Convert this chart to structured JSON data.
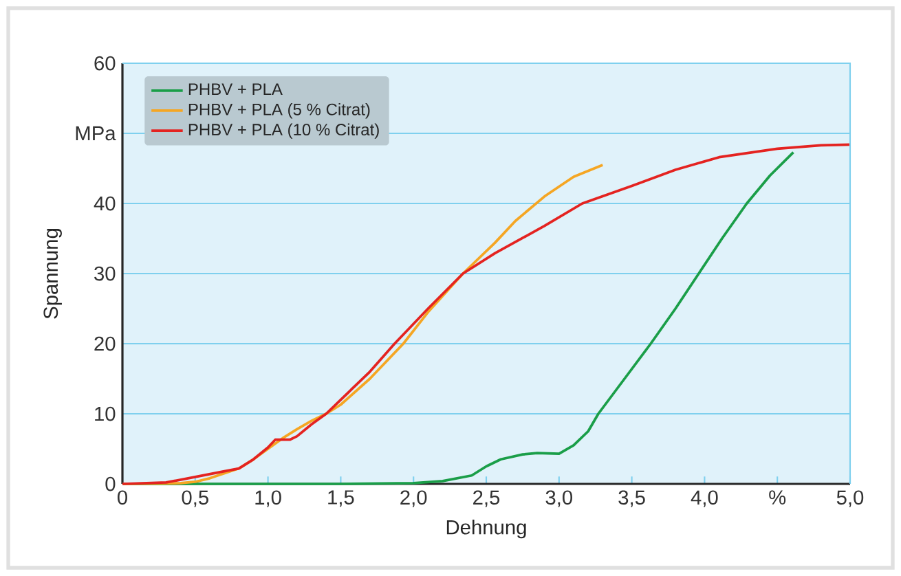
{
  "chart_data": {
    "type": "line",
    "xlabel": "Dehnung",
    "ylabel": "Spannung",
    "xlim": [
      0,
      5
    ],
    "ylim": [
      0,
      60
    ],
    "xticks": [
      0,
      {
        "value": 0.5,
        "label": "0,5"
      },
      {
        "value": 1.0,
        "label": "1,0"
      },
      {
        "value": 1.5,
        "label": "1,5"
      },
      {
        "value": 2.0,
        "label": "2,0"
      },
      {
        "value": 2.5,
        "label": "2,5"
      },
      {
        "value": 3.0,
        "label": "3,0"
      },
      {
        "value": 3.5,
        "label": "3,5"
      },
      {
        "value": 4.0,
        "label": "4,0"
      },
      {
        "value": 4.5,
        "label": "%"
      },
      {
        "value": 5.0,
        "label": "5,0"
      }
    ],
    "yticks": [
      0,
      10,
      20,
      30,
      40,
      {
        "value": 50,
        "label": "MPa"
      },
      60
    ],
    "grid": "y",
    "legend": "top left",
    "marker": "none",
    "line_style": "solid",
    "series": [
      {
        "name": "PHBV + PLA",
        "color": "#1a9e48",
        "x": [
          0,
          1.5,
          2.0,
          2.2,
          2.4,
          2.5,
          2.6,
          2.75,
          2.85,
          3.0,
          3.1,
          3.2,
          3.27,
          3.45,
          3.63,
          3.8,
          3.96,
          4.12,
          4.29,
          4.45,
          4.61
        ],
        "values": [
          0,
          0,
          0.1,
          0.4,
          1.2,
          2.5,
          3.5,
          4.2,
          4.4,
          4.3,
          5.5,
          7.5,
          10,
          15,
          20,
          25,
          30,
          35,
          40,
          44,
          47.3
        ]
      },
      {
        "name": "PHBV + PLA (5 % Citrat)",
        "color": "#f5a623",
        "x": [
          0,
          0.4,
          0.5,
          0.6,
          0.8,
          0.9,
          1.0,
          1.1,
          1.2,
          1.3,
          1.4,
          1.5,
          1.7,
          1.93,
          2.1,
          2.34,
          2.56,
          2.7,
          2.9,
          3.1,
          3.3
        ],
        "values": [
          0,
          0.1,
          0.3,
          0.8,
          2.2,
          3.5,
          5,
          6.5,
          7.8,
          9,
          10,
          11.3,
          15,
          20,
          24.5,
          30,
          34.4,
          37.5,
          41,
          43.8,
          45.5
        ]
      },
      {
        "name": "PHBV + PLA  (10 % Citrat)",
        "color": "#e42320",
        "x": [
          0,
          0.3,
          0.5,
          0.7,
          0.8,
          0.9,
          1.0,
          1.05,
          1.15,
          1.2,
          1.3,
          1.4,
          1.5,
          1.7,
          1.87,
          2.1,
          2.34,
          2.56,
          2.9,
          3.16,
          3.5,
          3.8,
          4.1,
          4.5,
          4.8,
          5.0
        ],
        "values": [
          0,
          0.2,
          1,
          1.8,
          2.2,
          3.5,
          5.2,
          6.3,
          6.3,
          6.8,
          8.5,
          10,
          12,
          16,
          20,
          25,
          30,
          32.9,
          36.8,
          40,
          42.5,
          44.8,
          46.6,
          47.8,
          48.3,
          48.4
        ]
      }
    ]
  }
}
